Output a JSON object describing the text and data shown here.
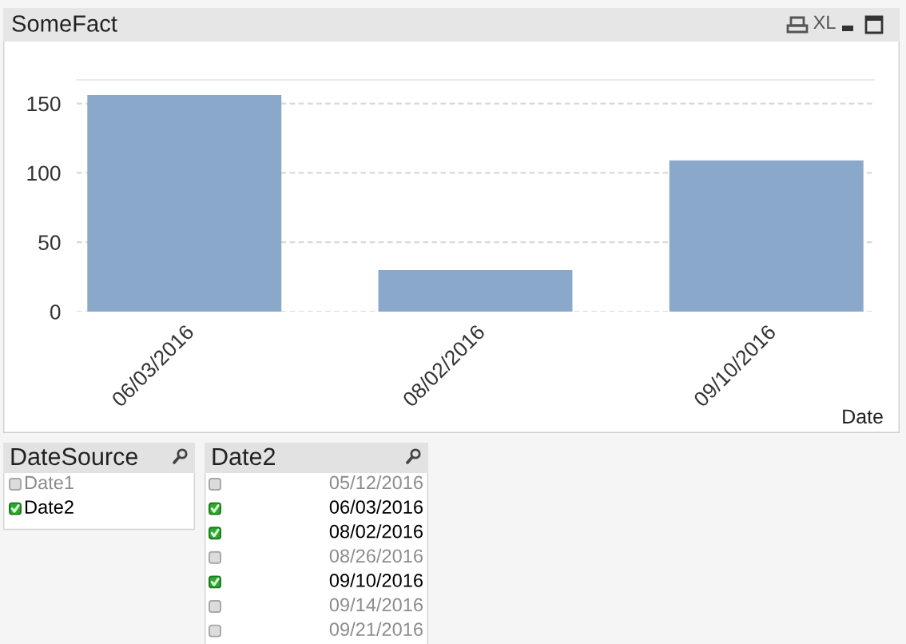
{
  "chart_data": [
    {
      "type": "bar",
      "title": "SomeFact",
      "categories": [
        "06/03/2016",
        "08/02/2016",
        "09/10/2016"
      ],
      "values": [
        156,
        30,
        109
      ],
      "color": "#8aa8c9",
      "ylim": [
        0,
        167
      ],
      "yticks": [
        0,
        50,
        100,
        150
      ],
      "grid": "y",
      "xlabel": "Date",
      "annotations": [
        "XL"
      ]
    },
    {
      "type": "other",
      "title": "DateSource",
      "categories": [
        "Date1",
        "Date2"
      ],
      "colors": [
        "#dcdcdc",
        "#2fa82f"
      ]
    },
    {
      "type": "other",
      "title": "Date2",
      "categories": [
        "05/12/2016",
        "06/03/2016",
        "08/02/2016",
        "08/26/2016",
        "09/10/2016",
        "09/14/2016",
        "09/21/2016"
      ],
      "colors": [
        "#dcdcdc",
        "#2fa82f",
        "#2fa82f",
        "#dcdcdc",
        "#2fa82f",
        "#dcdcdc",
        "#dcdcdc"
      ]
    }
  ]
}
